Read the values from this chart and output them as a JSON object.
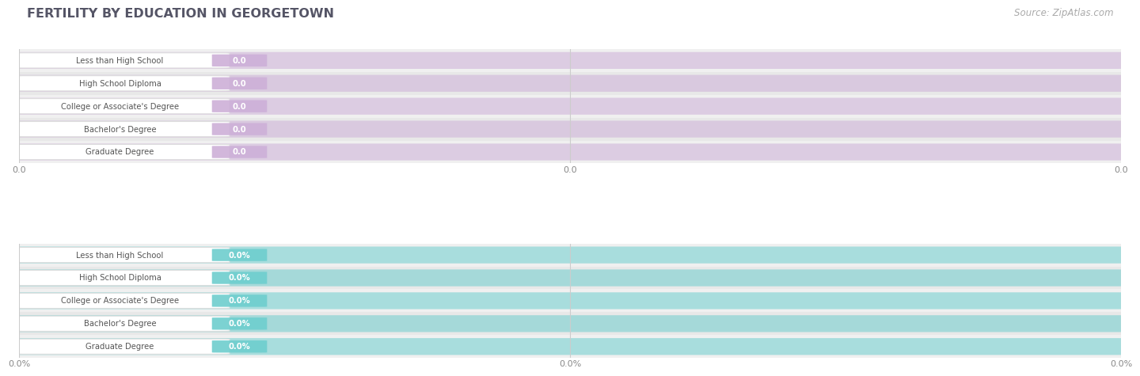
{
  "title": "FERTILITY BY EDUCATION IN GEORGETOWN",
  "source": "Source: ZipAtlas.com",
  "categories": [
    "Less than High School",
    "High School Diploma",
    "College or Associate's Degree",
    "Bachelor's Degree",
    "Graduate Degree"
  ],
  "values_top": [
    0.0,
    0.0,
    0.0,
    0.0,
    0.0
  ],
  "values_bottom": [
    0.0,
    0.0,
    0.0,
    0.0,
    0.0
  ],
  "bar_color_top": "#cdb0d8",
  "bar_color_bottom": "#6ecece",
  "bar_bg_color_top": "#deccec",
  "bar_bg_color_bottom": "#aadfdf",
  "row_bg_colors": [
    "#f0f0f0",
    "#e8e8e8"
  ],
  "title_color": "#555566",
  "source_color": "#aaaaaa",
  "value_color_top": "#b090c0",
  "value_color_bottom": "#55bbbb",
  "label_text_color": "#555555",
  "tick_color": "#888888",
  "grid_color": "#cccccc",
  "xtick_labels_top": [
    "0.0",
    "0.0",
    "0.0"
  ],
  "xtick_labels_bottom": [
    "0.0%",
    "0.0%",
    "0.0%"
  ],
  "figsize": [
    14.06,
    4.76
  ],
  "dpi": 100
}
